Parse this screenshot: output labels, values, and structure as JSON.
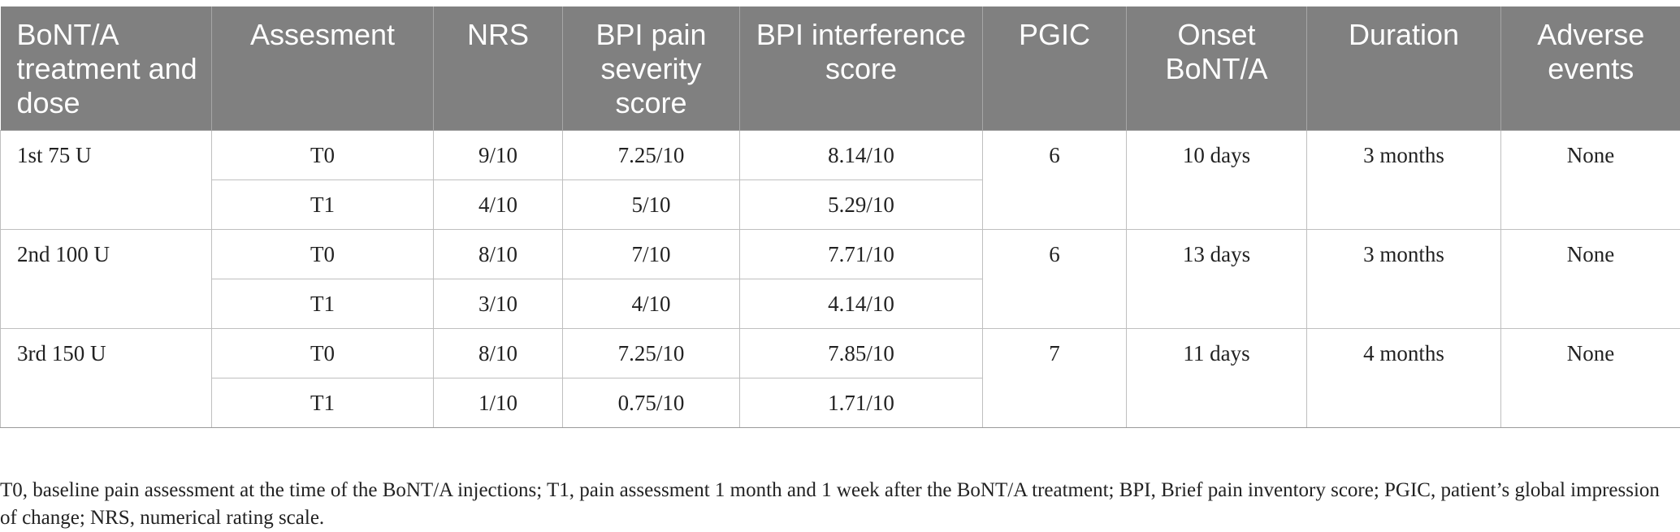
{
  "table": {
    "headers": [
      "BoNT/A treatment and dose",
      "Assesment",
      "NRS",
      "BPI pain severity score",
      "BPI interference score",
      "PGIC",
      "Onset BoNT/A",
      "Duration",
      "Adverse events"
    ],
    "groups": [
      {
        "treatment": "1st 75 U",
        "pgic": "6",
        "onset": "10 days",
        "duration": "3 months",
        "adverse": "None",
        "rows": [
          {
            "assessment": "T0",
            "nrs": "9/10",
            "bpi_severity": "7.25/10",
            "bpi_interference": "8.14/10"
          },
          {
            "assessment": "T1",
            "nrs": "4/10",
            "bpi_severity": "5/10",
            "bpi_interference": "5.29/10"
          }
        ]
      },
      {
        "treatment": "2nd 100 U",
        "pgic": "6",
        "onset": "13 days",
        "duration": "3 months",
        "adverse": "None",
        "rows": [
          {
            "assessment": "T0",
            "nrs": "8/10",
            "bpi_severity": "7/10",
            "bpi_interference": "7.71/10"
          },
          {
            "assessment": "T1",
            "nrs": "3/10",
            "bpi_severity": "4/10",
            "bpi_interference": "4.14/10"
          }
        ]
      },
      {
        "treatment": "3rd 150 U",
        "pgic": "7",
        "onset": "11 days",
        "duration": "4 months",
        "adverse": "None",
        "rows": [
          {
            "assessment": "T0",
            "nrs": "8/10",
            "bpi_severity": "7.25/10",
            "bpi_interference": "7.85/10"
          },
          {
            "assessment": "T1",
            "nrs": "1/10",
            "bpi_severity": "0.75/10",
            "bpi_interference": "1.71/10"
          }
        ]
      }
    ]
  },
  "footnote": "T0, baseline pain assessment at the time of the BoNT/A injections; T1, pain assessment 1 month and 1 week after the BoNT/A treatment; BPI, Brief pain inventory score; PGIC, patient’s global impression of change; NRS, numerical rating scale.",
  "colors": {
    "header_bg": "#808080",
    "header_text": "#ffffff",
    "body_text": "#222222",
    "grid": "#bfbfbf"
  }
}
